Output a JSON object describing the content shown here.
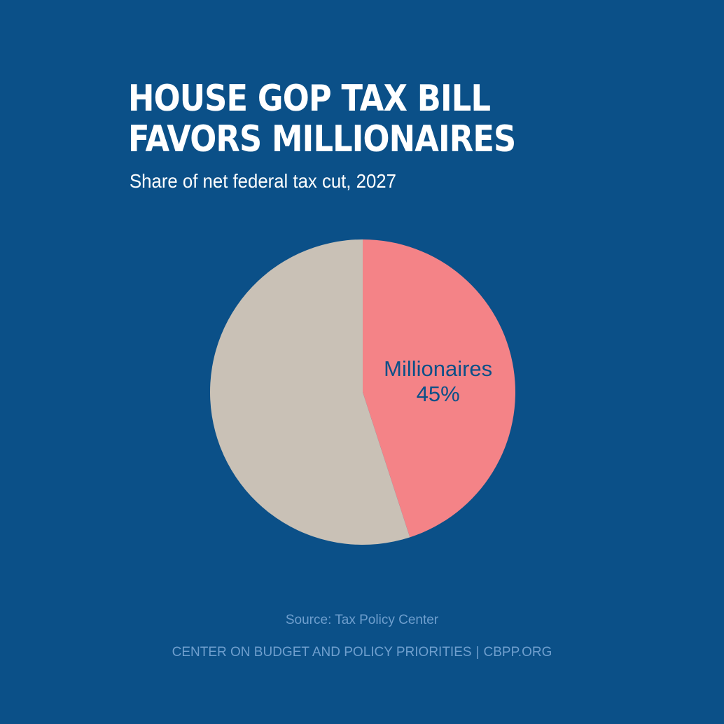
{
  "title": "HOUSE GOP TAX BILL FAVORS MILLIONAIRES",
  "subtitle": "Share of net federal tax cut, 2027",
  "chart_data": {
    "type": "pie",
    "title": "HOUSE GOP TAX BILL FAVORS MILLIONAIRES",
    "subtitle": "Share of net federal tax cut, 2027",
    "slices": [
      {
        "name": "Millionaires",
        "value": 45,
        "display": "45%",
        "color": "#f48387",
        "label_color": "#0b5088"
      },
      {
        "name": "",
        "value": 55,
        "display": "",
        "color": "#c9c1b6"
      }
    ]
  },
  "source": "Source: Tax Policy Center",
  "footer": {
    "org": "CENTER ON BUDGET AND POLICY PRIORITIES",
    "separator": "|",
    "url": "CBPP.ORG"
  },
  "colors": {
    "background": "#0b5088",
    "title": "#ffffff",
    "footer_text": "#6f9fce"
  }
}
